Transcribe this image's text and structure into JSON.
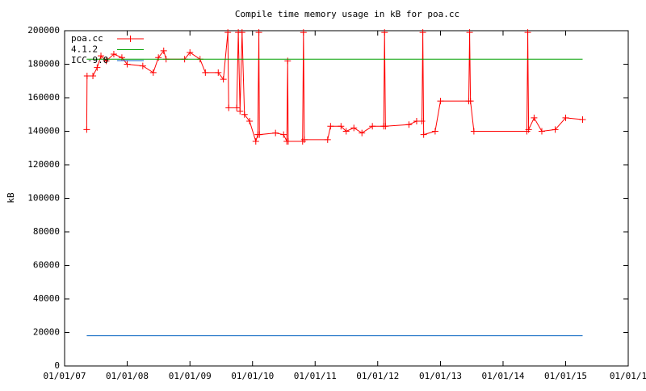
{
  "chart_data": {
    "type": "line",
    "title": "Compile time memory usage in kB for poa.cc",
    "y_label": "kB",
    "xlim": [
      "2007-01-01",
      "2016-01-01"
    ],
    "xticks": [
      {
        "value": "2007-01-01",
        "label": "01/01/07"
      },
      {
        "value": "2008-01-01",
        "label": "01/01/08"
      },
      {
        "value": "2009-01-01",
        "label": "01/01/09"
      },
      {
        "value": "2010-01-01",
        "label": "01/01/10"
      },
      {
        "value": "2011-01-01",
        "label": "01/01/11"
      },
      {
        "value": "2012-01-01",
        "label": "01/01/12"
      },
      {
        "value": "2013-01-01",
        "label": "01/01/13"
      },
      {
        "value": "2014-01-01",
        "label": "01/01/14"
      },
      {
        "value": "2015-01-01",
        "label": "01/01/15"
      },
      {
        "value": "2016-01-01",
        "label": "01/01/1"
      }
    ],
    "ylim": [
      0,
      200000
    ],
    "yticks": [
      0,
      20000,
      40000,
      60000,
      80000,
      100000,
      120000,
      140000,
      160000,
      180000,
      200000
    ],
    "grid": false,
    "legend": "top-left",
    "series": [
      {
        "name": "poa.cc",
        "color": "#ff0000",
        "markers": true,
        "x": [
          "2007-05-10",
          "2007-05-12",
          "2007-06-15",
          "2007-07-10",
          "2007-08-01",
          "2007-09-01",
          "2007-10-15",
          "2007-12-01",
          "2008-01-01",
          "2008-04-01",
          "2008-06-01",
          "2008-07-01",
          "2008-08-01",
          "2008-08-15",
          "2008-12-01",
          "2009-01-01",
          "2009-03-01",
          "2009-04-01",
          "2009-06-15",
          "2009-07-15",
          "2009-08-10",
          "2009-08-15",
          "2009-10-01",
          "2009-10-10",
          "2009-10-20",
          "2009-11-01",
          "2009-11-15",
          "2009-12-15",
          "2010-01-20",
          "2010-02-01",
          "2010-02-07",
          "2010-02-10",
          "2010-05-15",
          "2010-07-01",
          "2010-07-20",
          "2010-07-25",
          "2010-07-28",
          "2010-10-20",
          "2010-10-25",
          "2010-10-30",
          "2011-03-15",
          "2011-04-01",
          "2011-06-01",
          "2011-07-01",
          "2011-08-15",
          "2011-10-01",
          "2011-12-01",
          "2012-02-05",
          "2012-02-10",
          "2012-02-15",
          "2012-07-01",
          "2012-08-15",
          "2012-09-15",
          "2012-09-20",
          "2012-09-25",
          "2012-12-01",
          "2013-01-01",
          "2013-06-15",
          "2013-06-20",
          "2013-06-25",
          "2013-07-15",
          "2014-05-20",
          "2014-05-25",
          "2014-05-30",
          "2014-07-01",
          "2014-08-15",
          "2014-11-01",
          "2015-01-01",
          "2015-04-10"
        ],
        "values": [
          141000,
          173000,
          173000,
          178000,
          185000,
          182000,
          186000,
          184000,
          180000,
          179000,
          175000,
          184000,
          188000,
          183000,
          183000,
          187000,
          183000,
          175000,
          175000,
          171000,
          199000,
          154000,
          154000,
          199000,
          152000,
          199000,
          150000,
          146000,
          134000,
          138000,
          199000,
          138000,
          139000,
          138000,
          134000,
          182000,
          134000,
          134000,
          199000,
          135000,
          135000,
          143000,
          143000,
          140000,
          142000,
          139000,
          143000,
          143000,
          199000,
          143000,
          144000,
          146000,
          146000,
          199000,
          138000,
          140000,
          158000,
          158000,
          199000,
          158000,
          140000,
          140000,
          199000,
          141000,
          148000,
          140000,
          141000,
          148000,
          147000
        ]
      },
      {
        "name": "4.1.2",
        "color": "#00a000",
        "markers": false,
        "x": [
          "2007-05-10",
          "2015-04-10"
        ],
        "values": [
          183000,
          183000
        ]
      },
      {
        "name": "ICC-9.0",
        "color": "#0060c0",
        "markers": false,
        "x": [
          "2007-05-10",
          "2015-04-10"
        ],
        "values": [
          18000,
          18000
        ]
      }
    ]
  }
}
